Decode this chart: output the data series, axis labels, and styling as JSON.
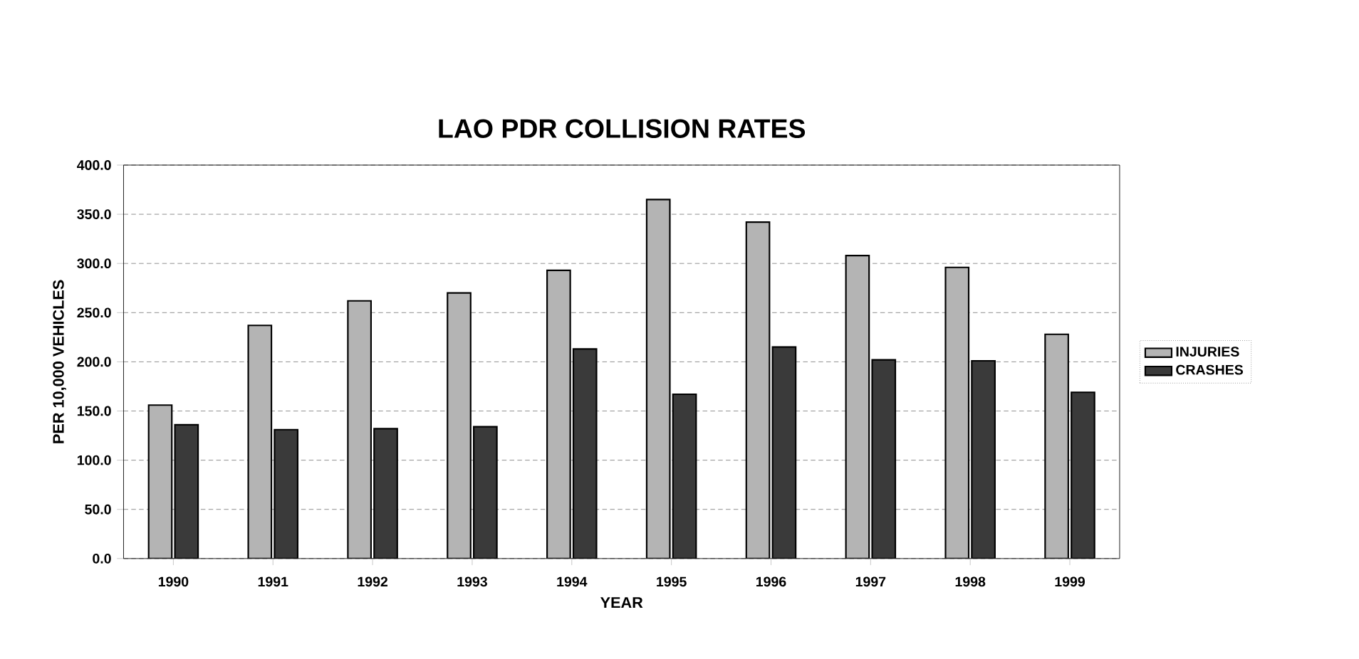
{
  "chart_data": {
    "type": "bar",
    "title": "LAO PDR COLLISION RATES",
    "xlabel": "YEAR",
    "ylabel": "PER 10,000 VEHICLES",
    "categories": [
      "1990",
      "1991",
      "1992",
      "1993",
      "1994",
      "1995",
      "1996",
      "1997",
      "1998",
      "1999"
    ],
    "series": [
      {
        "name": "INJURIES",
        "color": "#b4b4b4",
        "values": [
          156,
          237,
          262,
          270,
          293,
          365,
          342,
          308,
          296,
          228
        ]
      },
      {
        "name": "CRASHES",
        "color": "#3a3a3a",
        "values": [
          136,
          131,
          132,
          134,
          213,
          167,
          215,
          202,
          201,
          169
        ]
      }
    ],
    "ylim": [
      0,
      400
    ],
    "yticks": [
      {
        "value": 0,
        "label": "0.0"
      },
      {
        "value": 50,
        "label": "50.0"
      },
      {
        "value": 100,
        "label": "100.0"
      },
      {
        "value": 150,
        "label": "150.0"
      },
      {
        "value": 200,
        "label": "200.0"
      },
      {
        "value": 250,
        "label": "250.0"
      },
      {
        "value": 300,
        "label": "300.0"
      },
      {
        "value": 350,
        "label": "350.0"
      },
      {
        "value": 400,
        "label": "400.0"
      }
    ],
    "grid": "y",
    "legend": "right"
  }
}
